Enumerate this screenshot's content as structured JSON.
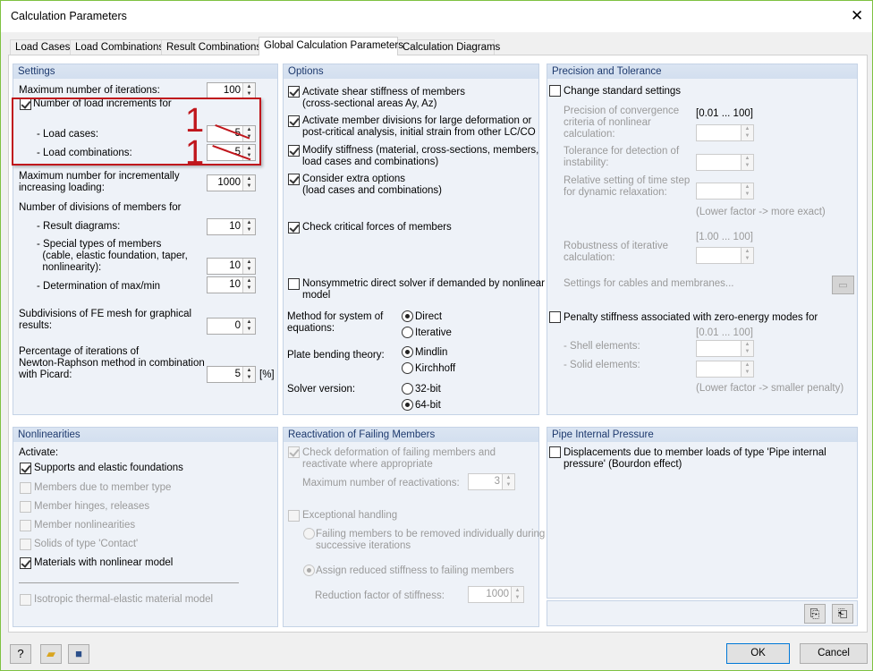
{
  "window": {
    "title": "Calculation Parameters",
    "close_icon": "close-icon"
  },
  "tabs": [
    "Load Cases",
    "Load Combinations",
    "Result Combinations",
    "Global Calculation Parameters",
    "Calculation Diagrams"
  ],
  "active_tab": "Global Calculation Parameters",
  "settings": {
    "header": "Settings",
    "max_iterations_label": "Maximum number of iterations:",
    "max_iterations": "100",
    "load_increments_label": "Number of load increments for",
    "load_increments_checked": true,
    "load_cases_label": "- Load cases:",
    "load_cases": "5",
    "load_combinations_label": "- Load combinations:",
    "load_combinations": "5",
    "annotation_1": "1",
    "annotation_2": "1",
    "annotation_color": "#c0161c",
    "max_incremental_label": "Maximum number for incrementally\nincreasing loading:",
    "max_incremental": "1000",
    "divisions_label": "Number of divisions of members for",
    "result_diagrams_label": "- Result diagrams:",
    "result_diagrams": "10",
    "special_types_label": "- Special types of members\n  (cable, elastic foundation, taper,\n  nonlinearity):",
    "special_types": "10",
    "maxmin_label": "- Determination of max/min",
    "maxmin": "10",
    "fe_mesh_label": "Subdivisions of FE mesh for graphical\nresults:",
    "fe_mesh": "0",
    "picard_label": "Percentage of iterations of\nNewton-Raphson method in combination\nwith Picard:",
    "picard": "5",
    "picard_unit": "[%]"
  },
  "options": {
    "header": "Options",
    "shear": "Activate shear stiffness of members\n(cross-sectional areas Ay, Az)",
    "divisions": "Activate member divisions for large deformation or\npost-critical analysis, initial strain from other LC/CO",
    "modify": "Modify stiffness (material, cross-sections, members,\nload cases and combinations)",
    "extra": "Consider extra options\n(load cases and combinations)",
    "critical": "Check critical forces of members",
    "nonsym": "Nonsymmetric direct solver if demanded by nonlinear\nmodel",
    "method_label": "Method for system of\nequations:",
    "method_direct": "Direct",
    "method_iterative": "Iterative",
    "method_selected": "Direct",
    "plate_label": "Plate bending theory:",
    "plate_mindlin": "Mindlin",
    "plate_kirchhoff": "Kirchhoff",
    "plate_selected": "Mindlin",
    "solver_label": "Solver version:",
    "solver_32": "32-bit",
    "solver_64": "64-bit",
    "solver_selected": "64-bit"
  },
  "precision": {
    "header": "Precision and Tolerance",
    "change": "Change standard settings",
    "convergence_label": "Precision of convergence\ncriteria of nonlinear\ncalculation:",
    "range1": "[0.01 ... 100]",
    "instability_label": "Tolerance for detection of\ninstability:",
    "timestep_label": "Relative setting of time step\nfor dynamic relaxation:",
    "note1": "(Lower factor -> more exact)",
    "range2": "[1.00 ... 100]",
    "robustness_label": "Robustness of iterative\ncalculation:",
    "cables_label": "Settings for cables and membranes...",
    "penalty": "Penalty stiffness associated with zero-energy modes for",
    "range3": "[0.01 ... 100]",
    "shell_label": "- Shell elements:",
    "solid_label": "- Solid elements:",
    "note2": "(Lower factor -> smaller penalty)"
  },
  "nonlinearities": {
    "header": "Nonlinearities",
    "activate": "Activate:",
    "items": [
      "Supports and elastic foundations",
      "Members due to member type",
      "Member hinges, releases",
      "Member nonlinearities",
      "Solids of type 'Contact'",
      "Materials with nonlinear model"
    ],
    "isotropic": "Isotropic thermal-elastic material model"
  },
  "reactivation": {
    "header": "Reactivation of Failing Members",
    "check": "Check deformation of failing members and\nreactivate where appropriate",
    "max_label": "Maximum number of reactivations:",
    "max": "3",
    "exceptional": "Exceptional handling",
    "remove": "Failing members to be removed individually during\nsuccessive iterations",
    "assign": "Assign reduced stiffness to failing members",
    "factor_label": "Reduction factor of stiffness:",
    "factor": "1000"
  },
  "pipe": {
    "header": "Pipe Internal Pressure",
    "displacements": "Displacements due to member loads of type 'Pipe internal\npressure' (Bourdon effect)"
  },
  "footer": {
    "ok": "OK",
    "cancel": "Cancel"
  }
}
